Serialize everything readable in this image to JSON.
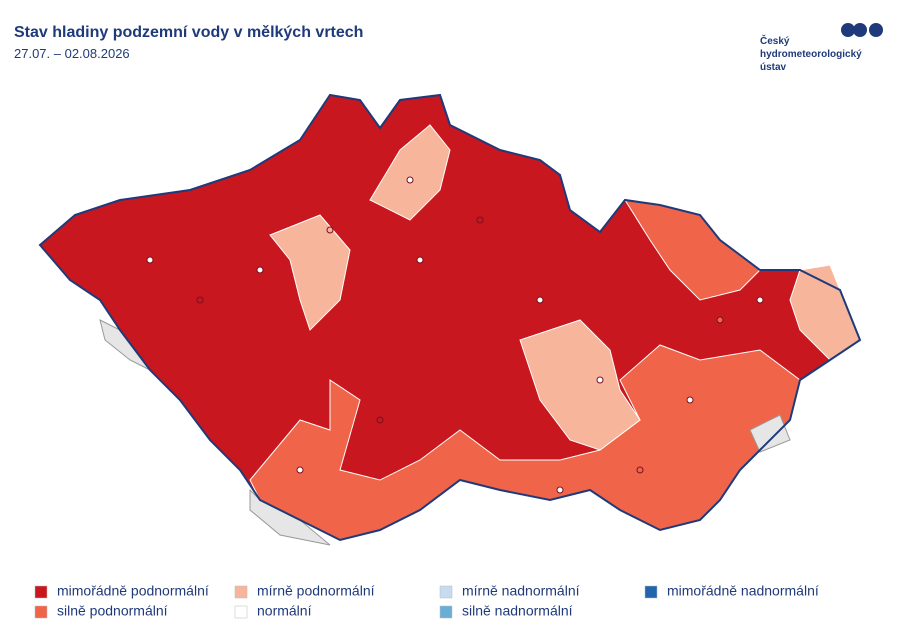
{
  "header": {
    "title": "Stav hladiny podzemní vody v mělkých vrtech",
    "period": "27.07. – 02.08.2026"
  },
  "logo": {
    "lines": [
      "Český",
      "hydrometeorologický",
      "ústav"
    ]
  },
  "legend": {
    "items": [
      {
        "label": "mimořádně podnormální",
        "color": "#c8171e"
      },
      {
        "label": "silně podnormální",
        "color": "#f0654a"
      },
      {
        "label": "mírně podnormální",
        "color": "#f7b59b"
      },
      {
        "label": "normální",
        "color": "#ffffff"
      },
      {
        "label": "mírně nadnormální",
        "color": "#c6dbef"
      },
      {
        "label": "silně nadnormální",
        "color": "#6aaed6"
      },
      {
        "label": "mimořádně nadnormální",
        "color": "#2166ac"
      }
    ]
  }
}
